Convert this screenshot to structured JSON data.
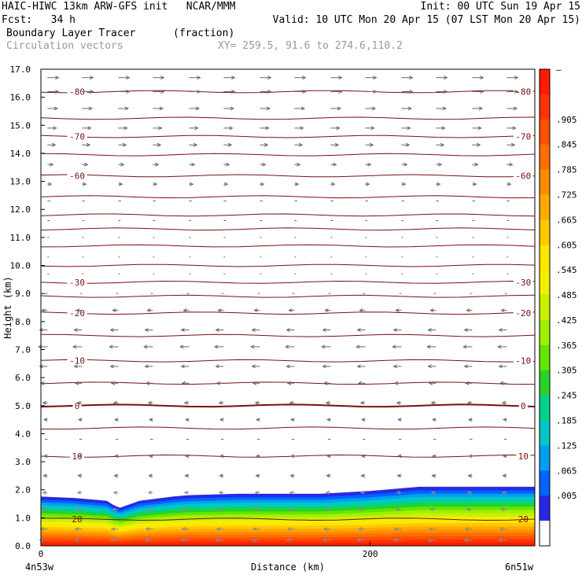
{
  "header": {
    "title_left": "HAIC-HIWC 13km ARW-GFS init   NCAR/MMM",
    "init": "Init: 00 UTC Sun 19 Apr 15",
    "fcst": "Fcst:   34 h",
    "valid": "Valid: 10 UTC Mon 20 Apr 15 (07 LST Mon 20 Apr 15)",
    "field1_name": "Boundary Layer Tracer",
    "field1_units": "(fraction)",
    "field2_name": "Circulation vectors",
    "xy_range": "XY= 259.5, 91.6 to 274.6,110.2"
  },
  "chart_data": {
    "type": "area",
    "title": "Boundary Layer Tracer",
    "units": "(fraction)",
    "ylabel": "Height (km)",
    "xlabel": "Distance (km)",
    "ylim": [
      0,
      17
    ],
    "y_ticks": [
      "0.0",
      "1.0",
      "2.0",
      "3.0",
      "4.0",
      "5.0",
      "6.0",
      "7.0",
      "8.0",
      "9.0",
      "10.0",
      "11.0",
      "12.0",
      "13.0",
      "14.0",
      "15.0",
      "16.0",
      "17.0"
    ],
    "x_ticks": [
      {
        "value": 0,
        "label": "0"
      },
      {
        "value": 200,
        "label": "200"
      }
    ],
    "x_max_km": 300,
    "x_end_labels": {
      "left": "4n53w",
      "right": "6n51w"
    },
    "tracer_top_profile": {
      "x_km": [
        0,
        20,
        40,
        44,
        48,
        60,
        80,
        90,
        120,
        150,
        170,
        200,
        230,
        260,
        300
      ],
      "top_km": [
        1.75,
        1.7,
        1.6,
        1.45,
        1.35,
        1.6,
        1.75,
        1.8,
        1.85,
        1.85,
        1.85,
        1.95,
        2.1,
        2.1,
        2.1
      ]
    },
    "colorbar": {
      "labels": [
        "–",
        ".905",
        ".845",
        ".785",
        ".725",
        ".665",
        ".605",
        ".545",
        ".485",
        ".425",
        ".365",
        ".305",
        ".245",
        ".185",
        ".125",
        ".065",
        ".005"
      ],
      "colors": [
        "#ff1a00",
        "#ff3300",
        "#ff5000",
        "#ff6e00",
        "#ff8c00",
        "#ffaa00",
        "#ffc800",
        "#ffe600",
        "#f0f000",
        "#c8f000",
        "#a0f000",
        "#64e600",
        "#28d228",
        "#00d28c",
        "#00c8c8",
        "#00a0f0",
        "#0064ff",
        "#2828e6",
        "#ffffff"
      ]
    },
    "contours": [
      {
        "label": "-80",
        "height_km": 16.2
      },
      {
        "label": "-70",
        "height_km": 14.6
      },
      {
        "label": "-60",
        "height_km": 13.2
      },
      {
        "label": "-30",
        "height_km": 9.4
      },
      {
        "label": "-20",
        "height_km": 8.3
      },
      {
        "label": "-10",
        "height_km": 6.6
      },
      {
        "label": "0",
        "height_km": 5.0
      },
      {
        "label": "10",
        "height_km": 3.2
      },
      {
        "label": "20",
        "height_km": 0.95
      }
    ],
    "contours_unlabeled_km": [
      15.25,
      13.95,
      12.45,
      11.8,
      11.3,
      10.7,
      10.0,
      8.9,
      7.5,
      5.8,
      4.2
    ],
    "vector_rows": [
      {
        "height_km": 16.7,
        "u": 1.0,
        "w": 0.0
      },
      {
        "height_km": 16.2,
        "u": 1.0,
        "w": 0.0
      },
      {
        "height_km": 15.6,
        "u": 0.9,
        "w": 0.0
      },
      {
        "height_km": 14.9,
        "u": 0.8,
        "w": 0.0
      },
      {
        "height_km": 14.3,
        "u": 0.7,
        "w": 0.0
      },
      {
        "height_km": 13.6,
        "u": 0.5,
        "w": 0.0
      },
      {
        "height_km": 12.9,
        "u": 0.35,
        "w": 0.0
      },
      {
        "height_km": 12.3,
        "u": 0.25,
        "w": 0.0
      },
      {
        "height_km": 11.6,
        "u": 0.2,
        "w": 0.0
      },
      {
        "height_km": 11.0,
        "u": 0.15,
        "w": 0.0
      },
      {
        "height_km": 10.3,
        "u": 0.1,
        "w": 0.0
      },
      {
        "height_km": 9.7,
        "u": 0.1,
        "w": 0.0
      },
      {
        "height_km": 9.0,
        "u": -0.2,
        "w": 0.0
      },
      {
        "height_km": 8.4,
        "u": -0.5,
        "w": 0.0
      },
      {
        "height_km": 7.7,
        "u": -0.7,
        "w": 0.0
      },
      {
        "height_km": 7.1,
        "u": -0.8,
        "w": 0.0
      },
      {
        "height_km": 6.4,
        "u": -0.7,
        "w": 0.0
      },
      {
        "height_km": 5.8,
        "u": -0.6,
        "w": 0.0
      },
      {
        "height_km": 5.1,
        "u": -0.4,
        "w": 0.0
      },
      {
        "height_km": 4.5,
        "u": -0.3,
        "w": 0.0
      },
      {
        "height_km": 3.8,
        "u": -0.25,
        "w": 0.0
      },
      {
        "height_km": 3.2,
        "u": -0.3,
        "w": 0.0
      },
      {
        "height_km": 2.5,
        "u": -0.35,
        "w": 0.0
      },
      {
        "height_km": 1.9,
        "u": -0.4,
        "w": 0.0
      },
      {
        "height_km": 1.3,
        "u": -0.5,
        "w": 0.0
      },
      {
        "height_km": 0.6,
        "u": -0.6,
        "w": 0.0
      },
      {
        "height_km": 0.2,
        "u": -0.7,
        "w": 0.0
      }
    ],
    "vector_x_km": [
      4,
      25,
      47,
      68,
      90,
      111,
      133,
      154,
      176,
      197,
      219,
      240,
      262,
      283
    ]
  }
}
